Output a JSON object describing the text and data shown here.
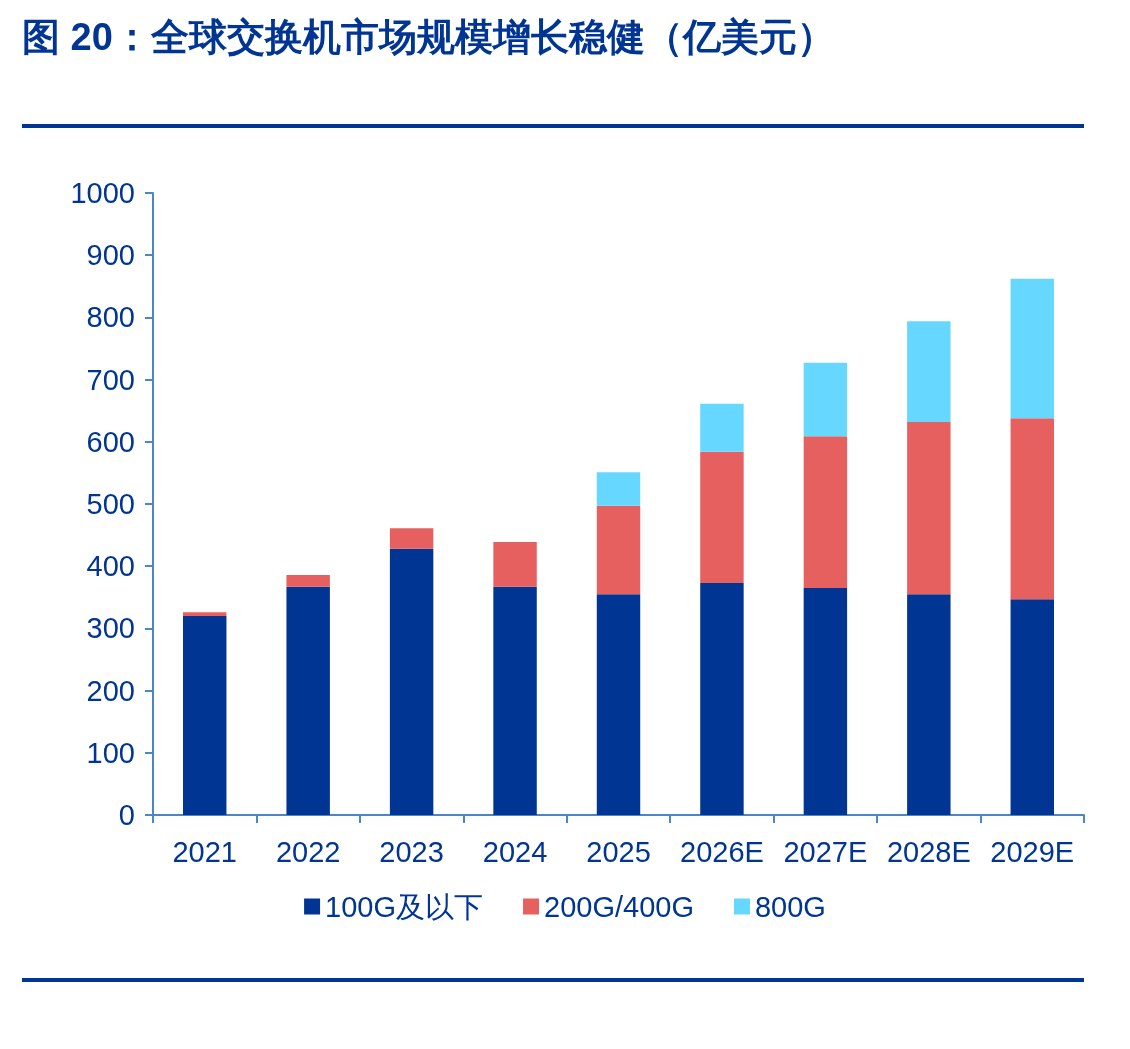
{
  "chart_data": {
    "type": "bar",
    "title": "图 20：全球交换机市场规模增长稳健（亿美元）",
    "categories": [
      "2021",
      "2022",
      "2023",
      "2024",
      "2025",
      "2026E",
      "2027E",
      "2028E",
      "2029E"
    ],
    "stacked": true,
    "series": [
      {
        "name": "100G及以下",
        "color": "#003594",
        "values": [
          320,
          367,
          428,
          367,
          355,
          373,
          365,
          355,
          347
        ]
      },
      {
        "name": "200G/400G",
        "color": "#e66060",
        "values": [
          6,
          19,
          33,
          72,
          142,
          211,
          244,
          277,
          291
        ]
      },
      {
        "name": "800G",
        "color": "#66d7ff",
        "values": [
          null,
          null,
          null,
          null,
          54,
          77,
          118,
          162,
          224
        ]
      }
    ],
    "ylim": [
      0,
      1000
    ],
    "yticks": [
      0,
      100,
      200,
      300,
      400,
      500,
      600,
      700,
      800,
      900,
      {
        "value": 1000,
        "label": "1000"
      }
    ],
    "grid": false,
    "legend": "bottom"
  }
}
